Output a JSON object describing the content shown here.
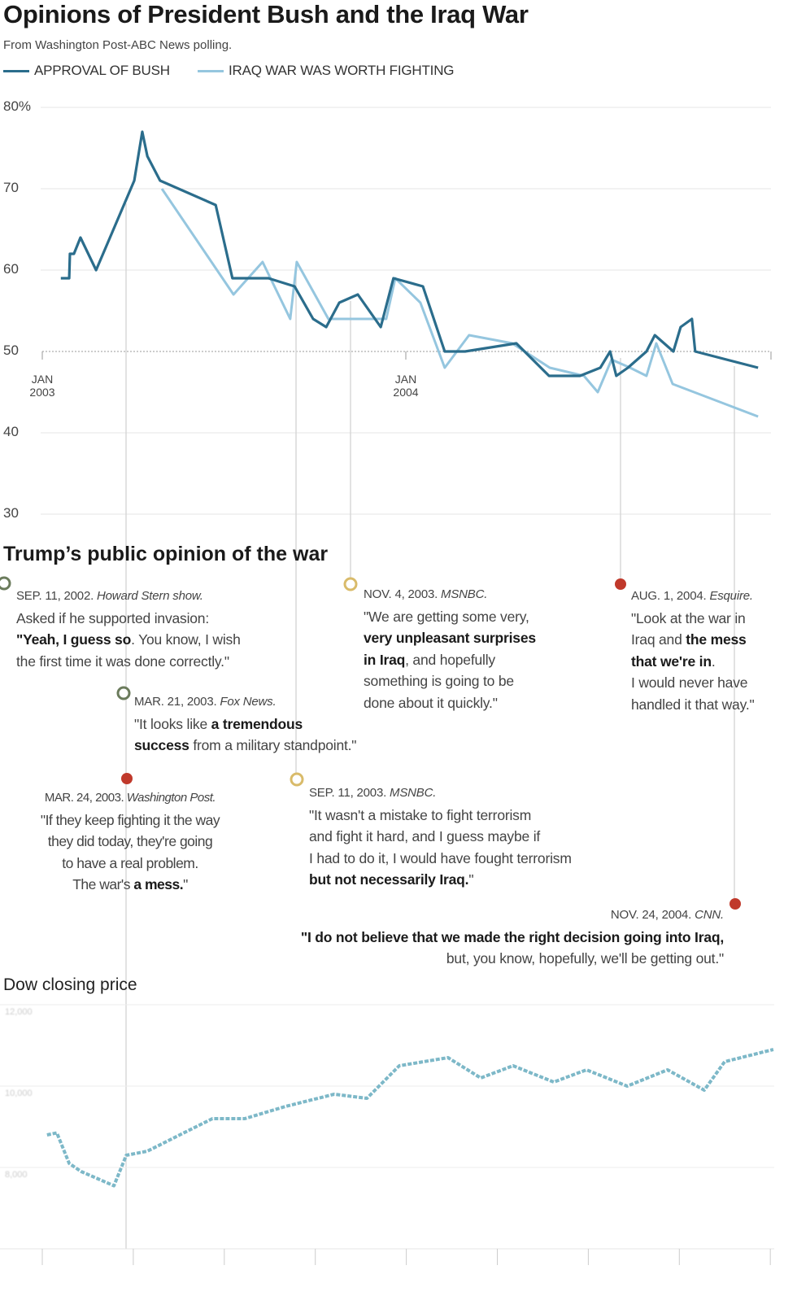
{
  "title": "Opinions of President Bush and the Iraq War",
  "subtitle": "From Washington Post-ABC News polling.",
  "colors": {
    "approval": "#2b6d8c",
    "worth": "#95c6df",
    "dow": "#7db8c8",
    "marker_red": "#c0392b",
    "marker_gold": "#d9bb6a",
    "marker_green": "#6b7b5c"
  },
  "chart_data": [
    {
      "type": "line",
      "title": "Opinions of President Bush and the Iraq War",
      "ylabel": "Percent",
      "ylim": [
        30,
        80
      ],
      "yticks": [
        "80%",
        "70",
        "60",
        "50",
        "40",
        "30"
      ],
      "ytick_values": [
        80,
        70,
        60,
        50,
        40,
        30
      ],
      "xticks": [
        {
          "label1": "JAN",
          "label2": "2003",
          "year": 2003
        },
        {
          "label1": "JAN",
          "label2": "2004",
          "year": 2004
        }
      ],
      "legend": "top-left",
      "series": [
        {
          "name": "APPROVAL OF BUSH",
          "x": [
            2003.051,
            2003.074,
            2003.076,
            2003.087,
            2003.105,
            2003.148,
            2003.253,
            2003.275,
            2003.289,
            2003.324,
            2003.477,
            2003.523,
            2003.622,
            2003.694,
            2003.745,
            2003.781,
            2003.817,
            2003.868,
            2003.931,
            2003.966,
            2004.047,
            2004.107,
            2004.163,
            2004.304,
            2004.394,
            2004.479,
            2004.535,
            2004.562,
            2004.579,
            2004.611,
            2004.662,
            2004.685,
            2004.736,
            2004.756,
            2004.787,
            2004.796,
            2004.969
          ],
          "y": [
            59,
            59,
            62,
            62,
            64,
            60,
            71,
            77,
            74,
            71,
            68,
            59,
            59,
            58,
            54,
            53,
            56,
            57,
            53,
            59,
            58,
            50,
            50,
            51,
            47,
            47,
            48,
            50,
            47,
            48,
            50,
            52,
            50,
            53,
            54,
            50,
            48
          ]
        },
        {
          "name": "IRAQ WAR WAS WORTH FIGHTING",
          "x": [
            2003.329,
            2003.526,
            2003.606,
            2003.682,
            2003.7,
            2003.787,
            2003.946,
            2003.971,
            2004.04,
            2004.107,
            2004.174,
            2004.293,
            2004.396,
            2004.49,
            2004.528,
            2004.566,
            2004.617,
            2004.662,
            2004.689,
            2004.734,
            2004.969
          ],
          "y": [
            70,
            57,
            61,
            54,
            61,
            54,
            54,
            59,
            56,
            48,
            52,
            51,
            48,
            47,
            45,
            49,
            48,
            47,
            51,
            46,
            42
          ]
        }
      ]
    },
    {
      "type": "line",
      "title": "Dow closing price",
      "ylim": [
        7500,
        12000
      ],
      "yticks": [
        "12,000",
        "10,000",
        "8,000"
      ],
      "ytick_values": [
        12000,
        10000,
        8000
      ],
      "series": [
        {
          "name": "Dow closing price",
          "x": [
            2003.013,
            2003.04,
            2003.074,
            2003.107,
            2003.197,
            2003.231,
            2003.289,
            2003.378,
            2003.468,
            2003.557,
            2003.669,
            2003.803,
            2003.893,
            2003.982,
            2004.116,
            2004.206,
            2004.295,
            2004.407,
            2004.497,
            2004.609,
            2004.72,
            2004.821,
            2004.877,
            2005.011
          ],
          "y": [
            9000,
            9050,
            8300,
            8100,
            7750,
            8500,
            8600,
            9000,
            9400,
            9400,
            9700,
            10000,
            9900,
            10700,
            10900,
            10400,
            10700,
            10300,
            10600,
            10200,
            10600,
            10100,
            10800,
            11100
          ]
        }
      ]
    }
  ],
  "legend": {
    "approval": "APPROVAL OF BUSH",
    "worth": "IRAQ WAR WAS WORTH FIGHTING"
  },
  "section_title": "Trump’s public opinion of the war",
  "dow_title": "Dow closing price",
  "annotations": [
    {
      "id": "sep2002",
      "date": "SEP. 11, 2002.",
      "source": "Howard Stern show.",
      "marker": "hollow-green",
      "lines": [
        [
          {
            "t": "Asked if he supported invasion:"
          }
        ],
        [
          {
            "t": "\"Yeah, I guess so",
            "b": true
          },
          {
            "t": ". You know, I wish"
          }
        ],
        [
          {
            "t": "the first time it was done correctly.\""
          }
        ]
      ]
    },
    {
      "id": "mar21",
      "date": "MAR. 21, 2003.",
      "source": "Fox News.",
      "marker": "hollow-green",
      "lines": [
        [
          {
            "t": "\"It looks like "
          },
          {
            "t": "a tremendous",
            "b": true
          }
        ],
        [
          {
            "t": "success",
            "b": true
          },
          {
            "t": " from a military standpoint.\""
          }
        ]
      ]
    },
    {
      "id": "mar24",
      "date": "MAR. 24, 2003.",
      "source": "Washington Post.",
      "marker": "red",
      "lines": [
        [
          {
            "t": "\"If they keep fighting it the way"
          }
        ],
        [
          {
            "t": "they did today, they're going"
          }
        ],
        [
          {
            "t": "to have a real problem."
          }
        ],
        [
          {
            "t": "The war's "
          },
          {
            "t": "a mess.",
            "b": true
          },
          {
            "t": "\""
          }
        ]
      ]
    },
    {
      "id": "nov2003",
      "date": "NOV. 4, 2003.",
      "source": "MSNBC.",
      "marker": "hollow-gold",
      "lines": [
        [
          {
            "t": "\"We are getting some very,"
          }
        ],
        [
          {
            "t": "very unpleasant surprises",
            "b": true
          }
        ],
        [
          {
            "t": "in Iraq",
            "b": true
          },
          {
            "t": ", and hopefully"
          }
        ],
        [
          {
            "t": "something is going to be"
          }
        ],
        [
          {
            "t": "done about it quickly.\""
          }
        ]
      ]
    },
    {
      "id": "sep2003",
      "date": "SEP. 11, 2003.",
      "source": "MSNBC.",
      "marker": "hollow-gold",
      "lines": [
        [
          {
            "t": "\"It wasn't a mistake to fight terrorism"
          }
        ],
        [
          {
            "t": "and fight it hard, and I guess maybe if"
          }
        ],
        [
          {
            "t": "I had to do it, I would have fought terrorism"
          }
        ],
        [
          {
            "t": "but not necessarily Iraq.",
            "b": true
          },
          {
            "t": "\""
          }
        ]
      ]
    },
    {
      "id": "aug2004",
      "date": "AUG. 1, 2004.",
      "source": "Esquire.",
      "marker": "red",
      "lines": [
        [
          {
            "t": "\"Look at the war in"
          }
        ],
        [
          {
            "t": "Iraq and "
          },
          {
            "t": "the mess",
            "b": true
          }
        ],
        [
          {
            "t": "that we're in",
            "b": true
          },
          {
            "t": "."
          }
        ],
        [
          {
            "t": "I would never have"
          }
        ],
        [
          {
            "t": "handled it that way.\""
          }
        ]
      ]
    },
    {
      "id": "nov2004",
      "date": "NOV. 24, 2004.",
      "source": "CNN.",
      "marker": "red",
      "lines": [
        [
          {
            "t": "\"I do not believe that we made the right decision going into Iraq,",
            "b": true
          }
        ],
        [
          {
            "t": "but, you know, hopefully, we'll be getting out.\""
          }
        ]
      ]
    }
  ]
}
